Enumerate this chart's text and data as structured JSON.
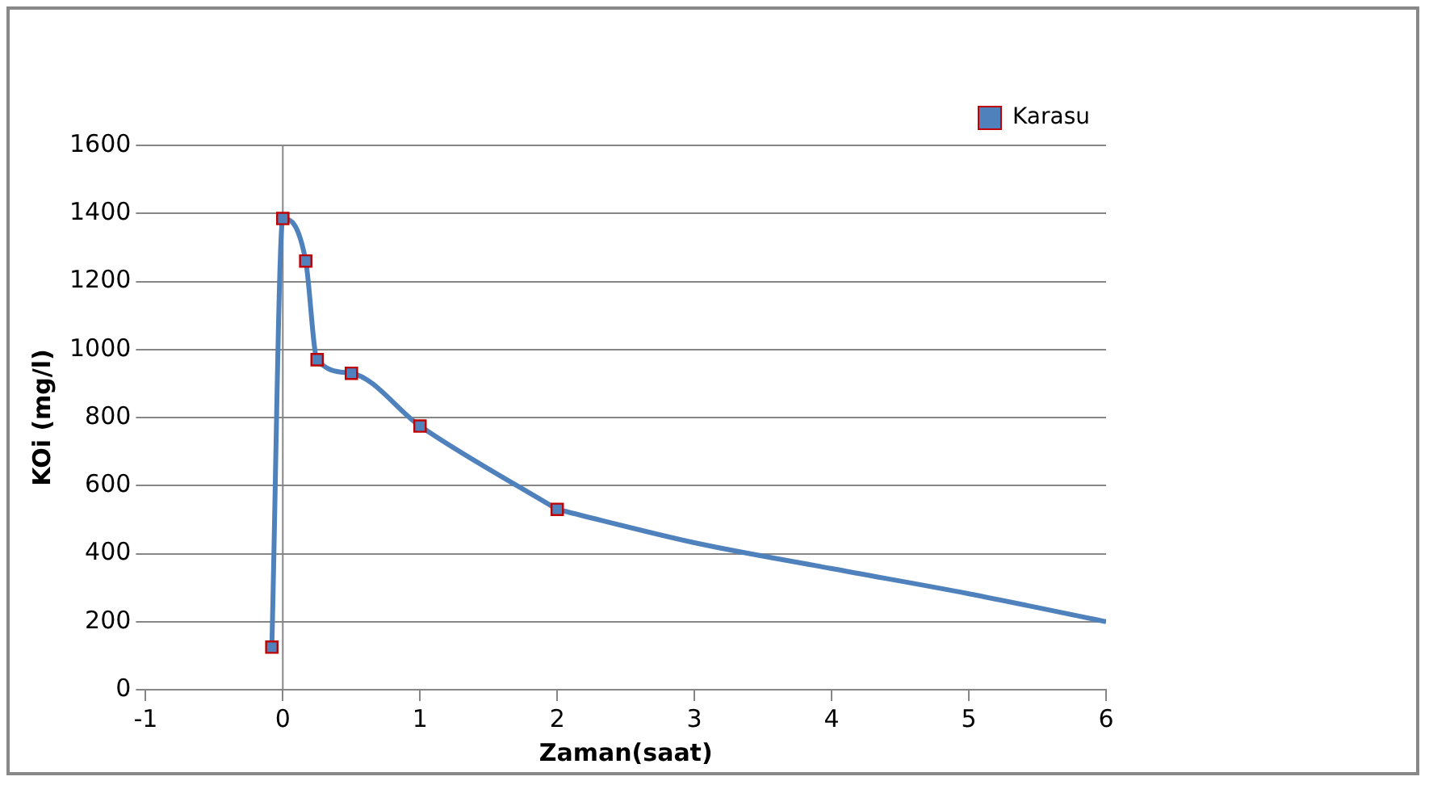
{
  "chart_data": {
    "type": "line",
    "xlabel": "Zaman(saat)",
    "ylabel": "KOi (mg/l)",
    "xlim": [
      -1,
      6
    ],
    "xticks": [
      -1,
      0,
      1,
      2,
      3,
      4,
      5,
      6
    ],
    "ylim": [
      0,
      1600
    ],
    "yticks": [
      0,
      200,
      400,
      600,
      800,
      1000,
      1200,
      1400,
      1600
    ],
    "grid": "y",
    "legend": "top right",
    "marker": "square",
    "ref_lines": [
      {
        "axis": "x",
        "value": 0,
        "color": "#868686"
      }
    ],
    "series": [
      {
        "name": "Karasu",
        "color": "#4f81bd",
        "x": [
          -0.08,
          0,
          0.167,
          0.25,
          0.5,
          1,
          2
        ],
        "values": [
          125,
          1385,
          1260,
          970,
          930,
          775,
          530
        ]
      },
      {
        "color": "#4f81bd",
        "marker": "none",
        "x": [
          2,
          3,
          4,
          5,
          6
        ],
        "values": [
          530,
          432,
          356,
          282,
          200
        ]
      }
    ]
  }
}
